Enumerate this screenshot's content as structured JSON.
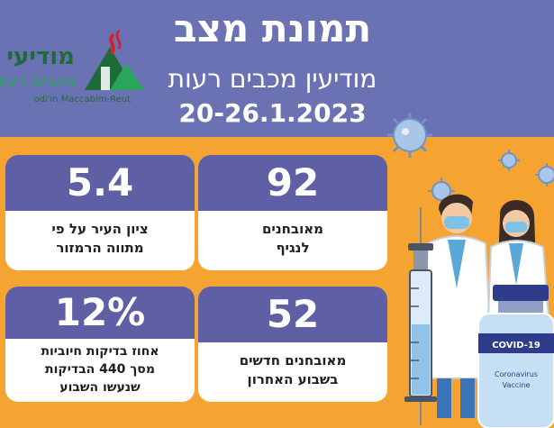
{
  "header": {
    "title": "תמונת מצב",
    "city": "מודיעין מכבים רעות",
    "date_range": "20-26.1.2023"
  },
  "logo": {
    "main": "מודיעי",
    "sub": "מכבים רעוו",
    "english": "odi'in Maccabim-Reut"
  },
  "stats": {
    "new_cases": {
      "value": "92",
      "label_line1": "מאובחנים",
      "label_line2": "לנגיף"
    },
    "city_score": {
      "value": "5.4",
      "label_line1": "ציון העיר על פי",
      "label_line2": "מתווה הרמזור"
    },
    "weekly_new": {
      "value": "52",
      "label_line1": "מאובחנים חדשים",
      "label_line2": "בשבוע האחרון"
    },
    "positive_rate": {
      "value": "12%",
      "label_line1": "אחוז בדיקות חיוביות",
      "label_line2": "מסך 440 הבדיקות",
      "label_line3": "שנעשו השבוע"
    }
  },
  "illustration": {
    "vial_label": "COVID-19",
    "vial_sub_line1": "Coronavirus",
    "vial_sub_line2": "Vaccine"
  },
  "colors": {
    "header_bg": "#6b72b3",
    "body_bg": "#f6a431",
    "card_top": "#5f5fa6",
    "logo_green": "#1e6b3a"
  }
}
